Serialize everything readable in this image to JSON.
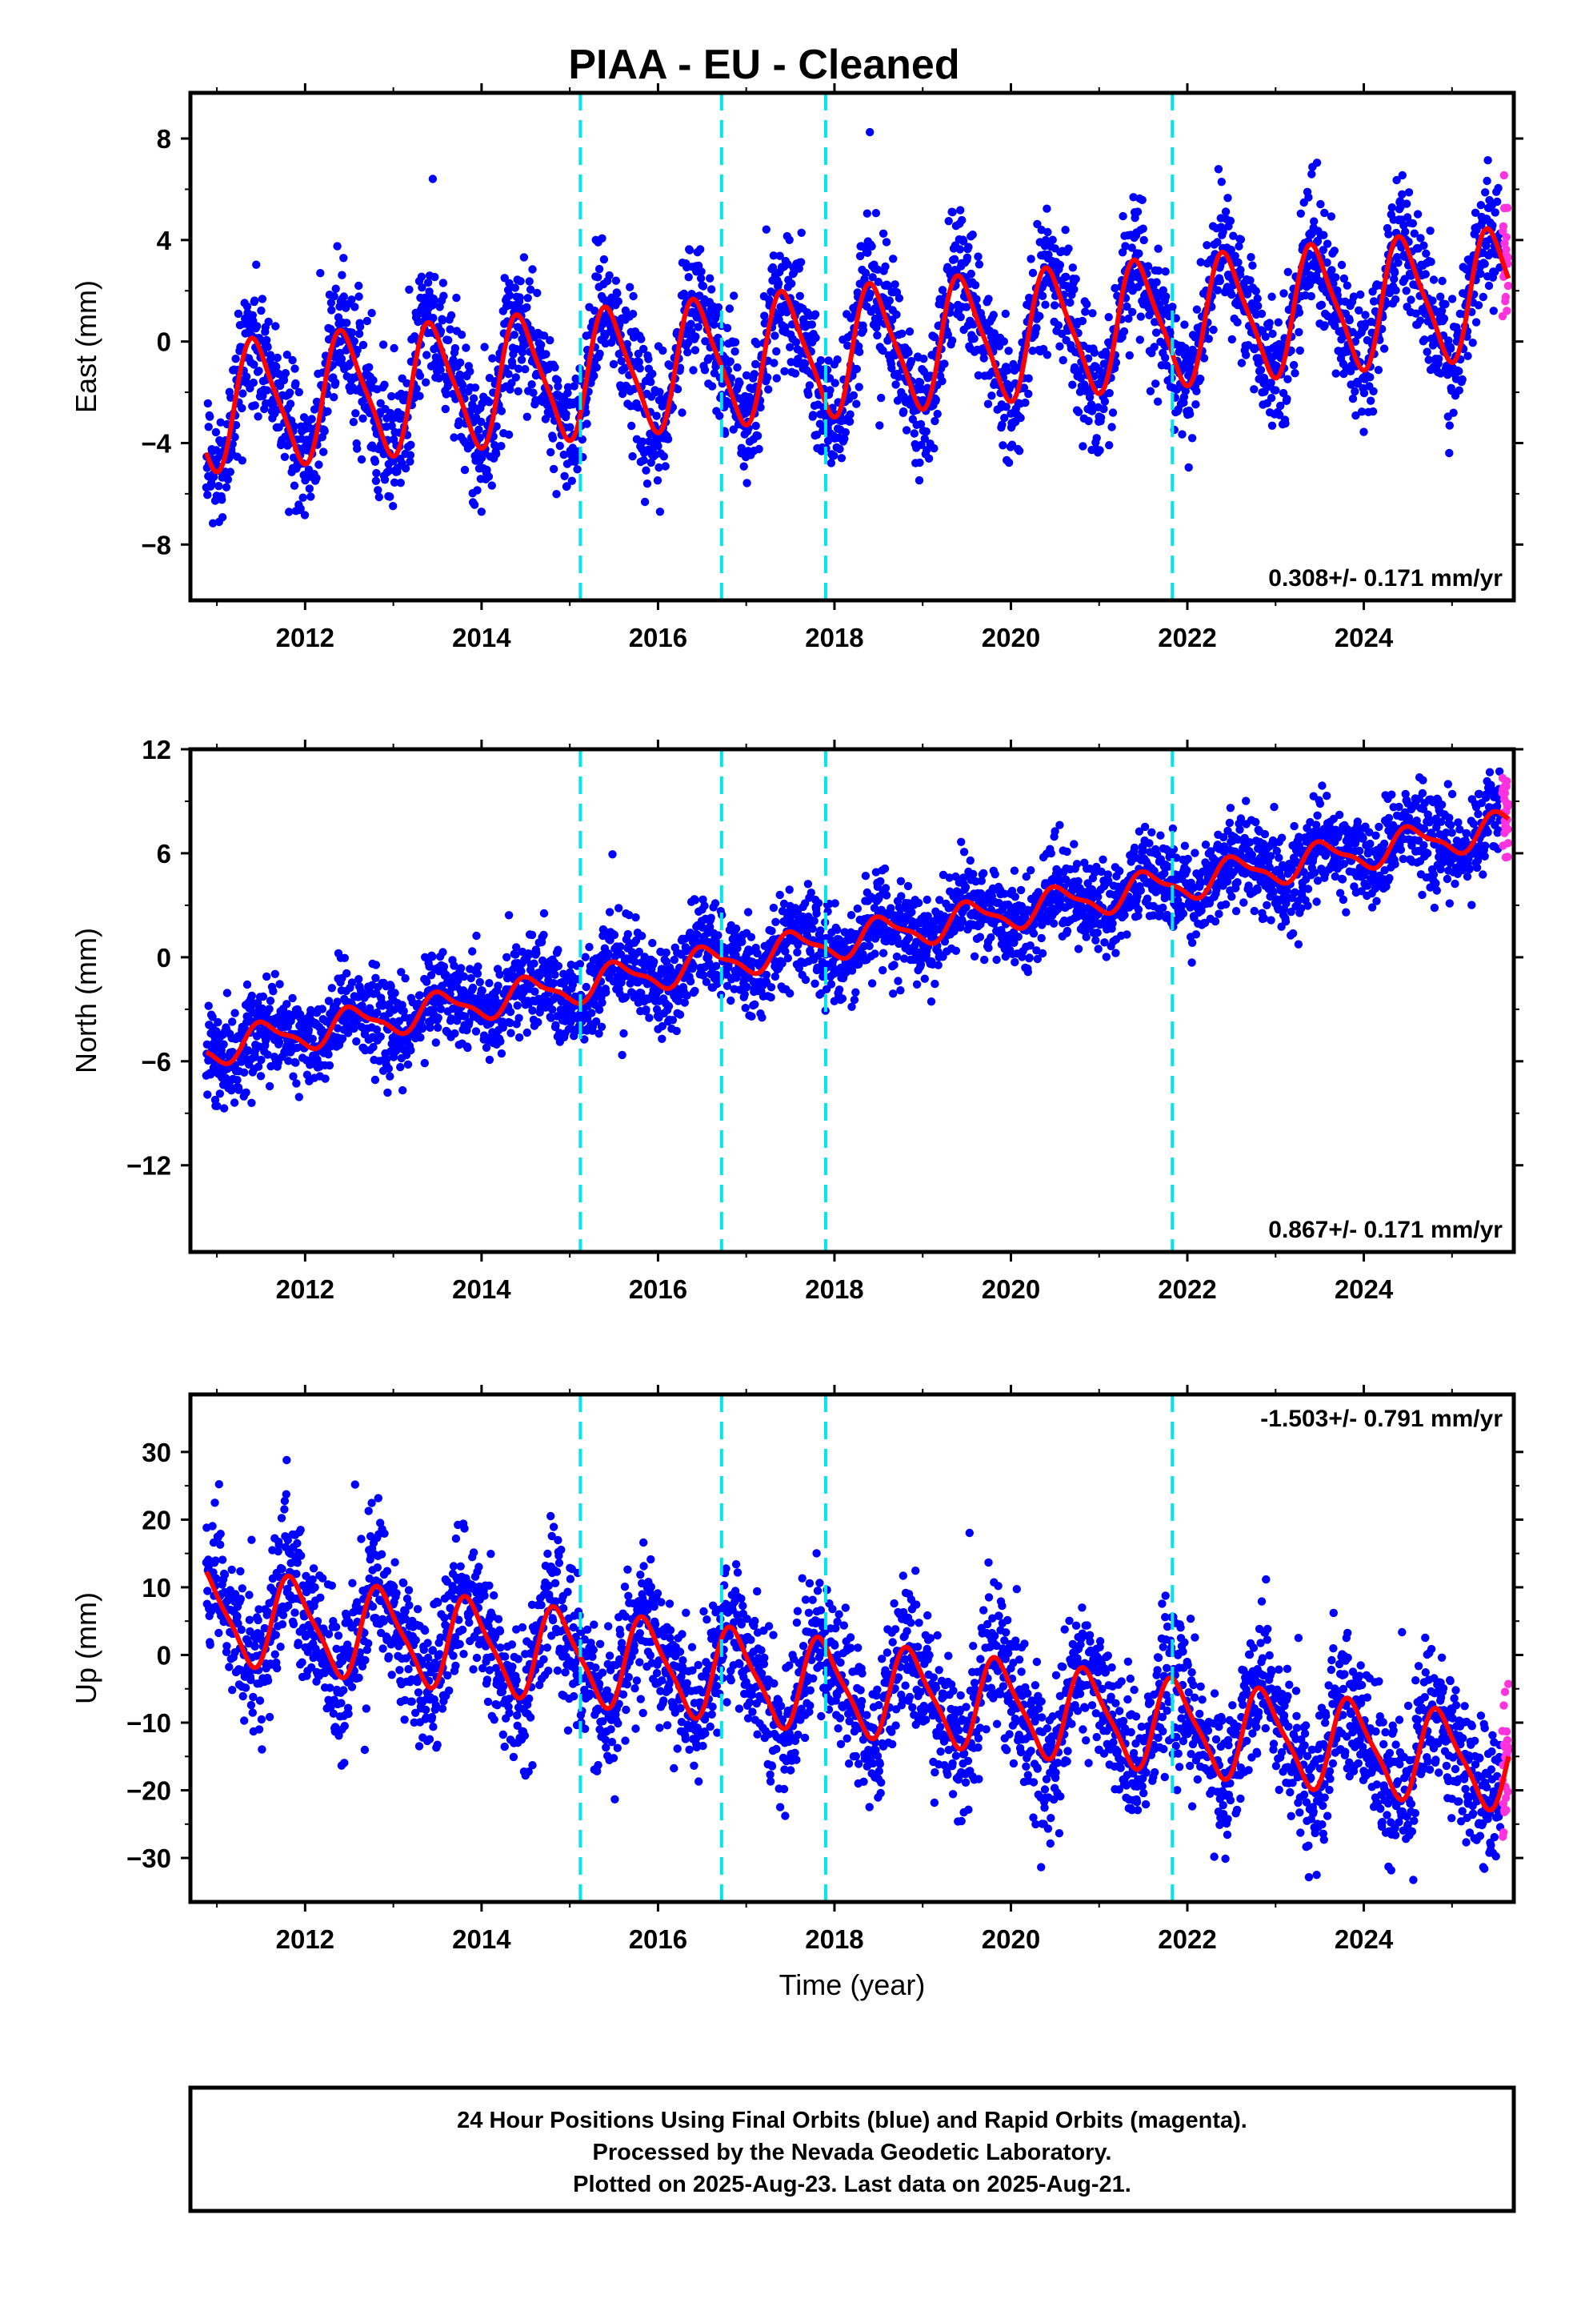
{
  "title": "PIAA  - EU - Cleaned",
  "colors": {
    "final": "#0000ff",
    "rapid": "#ff33dd",
    "model": "#ff0000",
    "steps": "#00e5ee",
    "frame": "#000000"
  },
  "step_dates": [
    2015.12,
    2016.72,
    2017.9,
    2021.83
  ],
  "chart_data": [
    {
      "type": "scatter",
      "name": "east",
      "ylabel": "East (mm)",
      "xlim": [
        2010.7,
        2025.7
      ],
      "ylim": [
        -10.2,
        9.8
      ],
      "yticks": [
        -8,
        -4,
        0,
        4,
        8
      ],
      "xticks": [
        2012,
        2014,
        2016,
        2018,
        2020,
        2022,
        2024
      ],
      "rate_label": "0.308+/- 0.171 mm/yr",
      "rate_label_position": "bottom-right",
      "model": {
        "base": -2.6,
        "trend_mm_per_yr": 0.308,
        "annual_amp": 2.4,
        "semiannual_amp": 0.5,
        "phase": 0.2
      },
      "scatter_sd": 1.25,
      "series": [
        {
          "name": "Final Orbits",
          "color": "#0000ff",
          "start": 2010.88,
          "end": 2025.55
        },
        {
          "name": "Rapid Orbits",
          "color": "#ff33dd",
          "start": 2025.57,
          "end": 2025.64
        }
      ]
    },
    {
      "type": "scatter",
      "name": "north",
      "ylabel": "North (mm)",
      "xlim": [
        2010.7,
        2025.7
      ],
      "ylim": [
        -17,
        12
      ],
      "yticks": [
        -12,
        -6,
        0,
        6,
        12
      ],
      "xticks": [
        2012,
        2014,
        2016,
        2018,
        2020,
        2022,
        2024
      ],
      "rate_label": "0.867+/- 0.171 mm/yr",
      "rate_label_position": "bottom-right",
      "model": {
        "base": -5.3,
        "trend_mm_per_yr": 0.867,
        "annual_amp": 0.9,
        "semiannual_amp": 0.3,
        "phase": 0.3
      },
      "scatter_sd": 1.3,
      "series": [
        {
          "name": "Final Orbits",
          "color": "#0000ff",
          "start": 2010.88,
          "end": 2025.55
        },
        {
          "name": "Rapid Orbits",
          "color": "#ff33dd",
          "start": 2025.57,
          "end": 2025.64
        }
      ]
    },
    {
      "type": "scatter",
      "name": "up",
      "ylabel": "Up (mm)",
      "xlabel": "Time (year)",
      "xlim": [
        2010.7,
        2025.7
      ],
      "ylim": [
        -36.5,
        38.5
      ],
      "yticks": [
        -30,
        -20,
        -10,
        0,
        10,
        20,
        30
      ],
      "xticks": [
        2012,
        2014,
        2016,
        2018,
        2020,
        2022,
        2024
      ],
      "rate_label": "-1.503+/- 0.791 mm/yr",
      "rate_label_position": "top-right",
      "model": {
        "base": 6.0,
        "trend_mm_per_yr": -1.503,
        "annual_amp": 6.5,
        "semiannual_amp": 1.5,
        "phase": 0.62
      },
      "scatter_sd": 5.2,
      "series": [
        {
          "name": "Final Orbits",
          "color": "#0000ff",
          "start": 2010.88,
          "end": 2025.55
        },
        {
          "name": "Rapid Orbits",
          "color": "#ff33dd",
          "start": 2025.57,
          "end": 2025.64
        }
      ]
    }
  ],
  "footer": {
    "line1": "24 Hour Positions Using Final Orbits (blue) and Rapid Orbits (magenta).",
    "line2": "Processed by the Nevada Geodetic Laboratory.",
    "line3": "Plotted on 2025-Aug-23. Last data on 2025-Aug-21."
  }
}
